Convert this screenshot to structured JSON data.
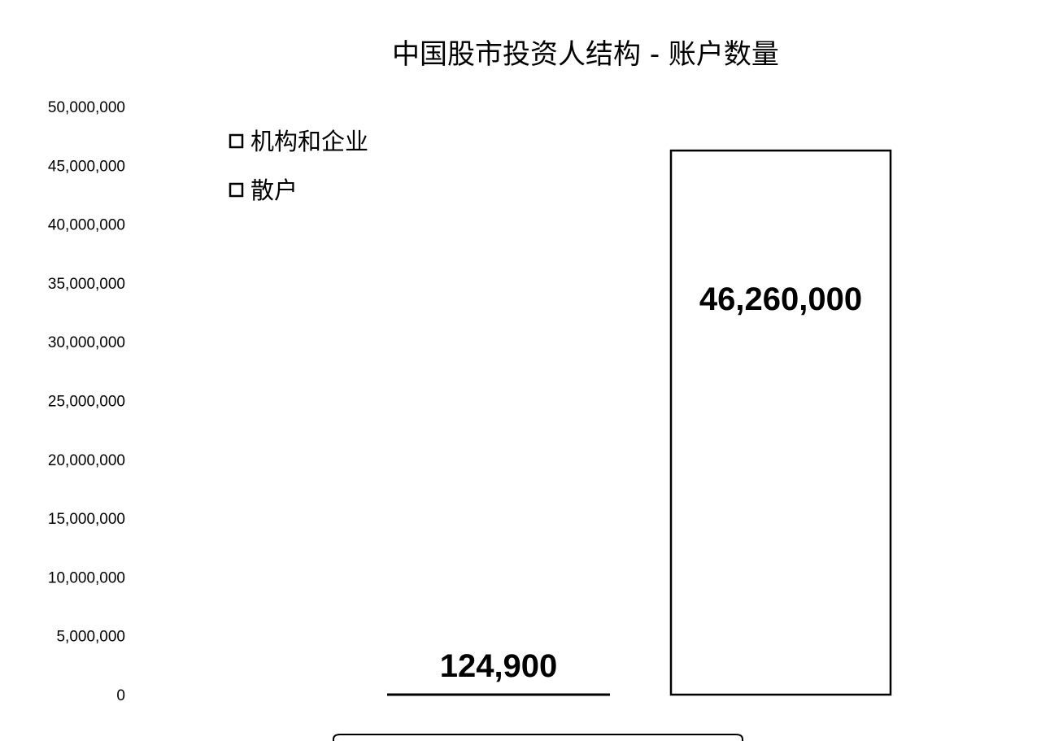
{
  "chart_data": {
    "type": "bar",
    "title": "中国股市投资人结构 - 账户数量",
    "categories": [
      "机构和企业",
      "散户"
    ],
    "values": [
      124900,
      46260000
    ],
    "value_labels": [
      "124,900",
      "46,260,000"
    ],
    "series": [
      {
        "name": "机构和企业",
        "values": [
          124900,
          null
        ],
        "color": "#ffffff"
      },
      {
        "name": "散户",
        "values": [
          null,
          46260000
        ],
        "color": "#ffffff"
      }
    ],
    "ylim": [
      0,
      50000000
    ],
    "y_ticks": [
      "0",
      "5,000,000",
      "10,000,000",
      "15,000,000",
      "20,000,000",
      "25,000,000",
      "30,000,000",
      "35,000,000",
      "40,000,000",
      "45,000,000",
      "50,000,000"
    ],
    "xlabel": "",
    "ylabel": "",
    "grid": false,
    "legend_position": "top-left",
    "legend": [
      "机构和企业",
      "散户"
    ],
    "bar_fill": "#ffffff",
    "bar_stroke": "#000000"
  }
}
